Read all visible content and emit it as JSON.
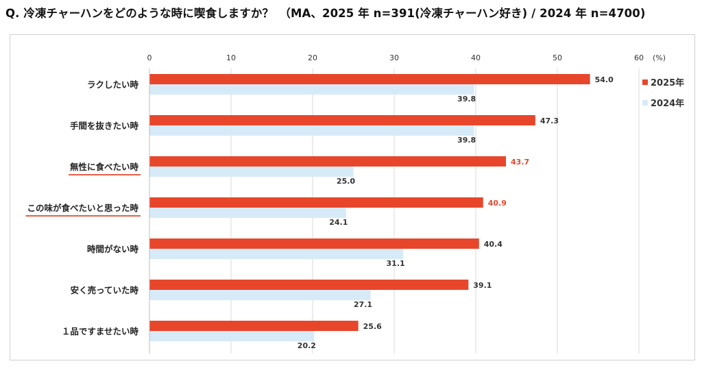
{
  "question": "Q.  冷凍チャーハンをどのような時に喫食しますか？　（MA、2025 年 n=391(冷凍チャーハン好き) / 2024 年  n=4700)",
  "colors": {
    "series_2025": "#e8462b",
    "series_2024": "#d7eaf8",
    "highlight_label": "#e8462b",
    "underline": "#e8462b"
  },
  "chart_data": {
    "type": "bar",
    "orientation": "horizontal",
    "categories": [
      "ラクしたい時",
      "手間を抜きたい時",
      "無性に食べたい時",
      "この味が食べたいと思った時",
      "時間がない時",
      "安く売っていた時",
      "１品ですませたい時"
    ],
    "highlighted_categories": [
      2,
      3
    ],
    "series": [
      {
        "name": "2025年",
        "values": [
          54.0,
          47.3,
          43.7,
          40.9,
          40.4,
          39.1,
          25.6
        ]
      },
      {
        "name": "2024年",
        "values": [
          39.8,
          39.8,
          25.0,
          24.1,
          31.1,
          27.1,
          20.2
        ]
      }
    ],
    "xlim": [
      0,
      60
    ],
    "xticks": [
      0,
      10,
      20,
      30,
      40,
      50,
      60
    ],
    "unit_label": "(%)",
    "grid": true,
    "legend": "top-right"
  }
}
